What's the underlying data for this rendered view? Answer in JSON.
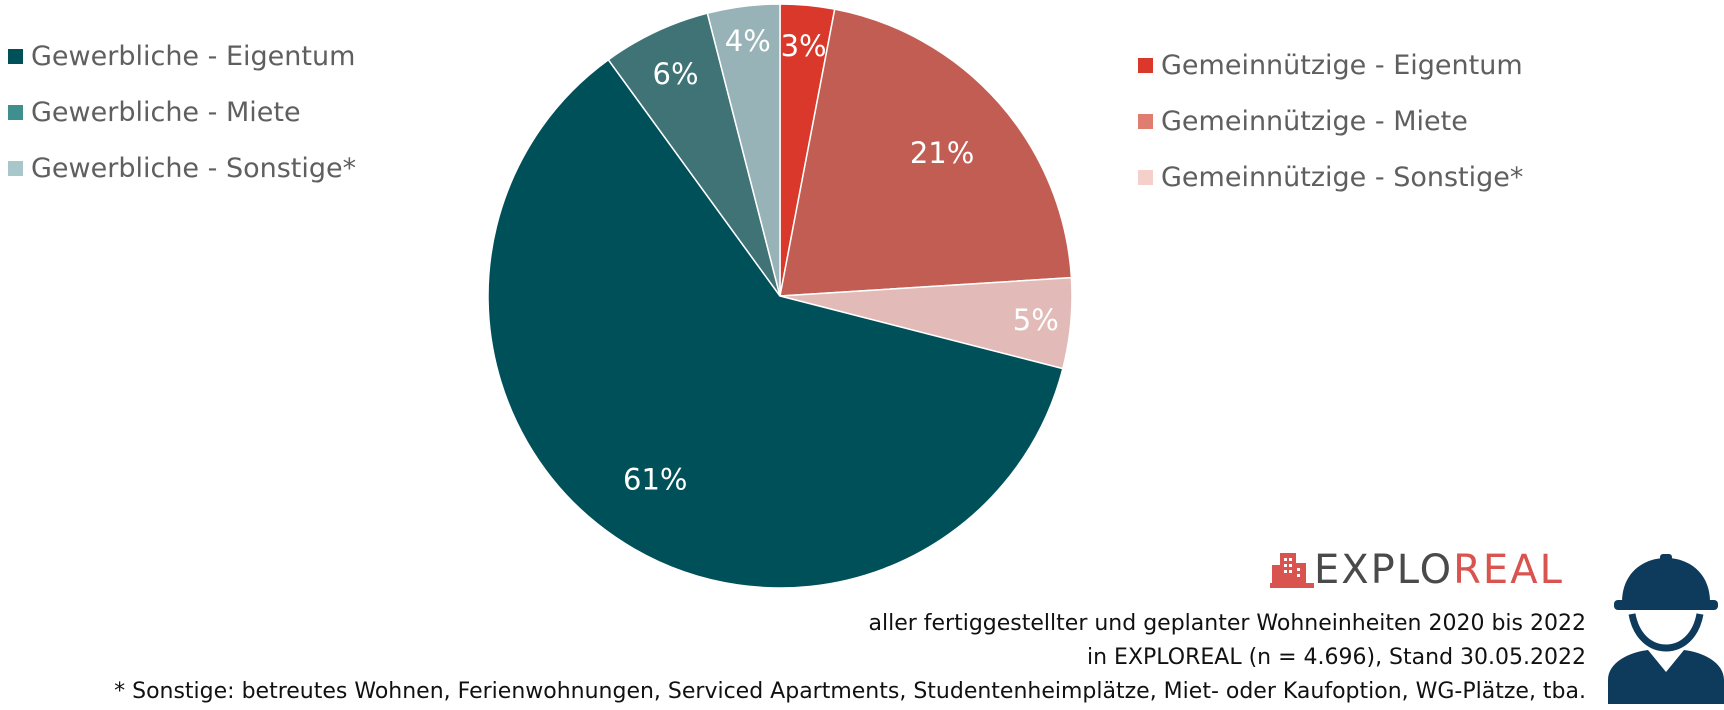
{
  "chart_data": {
    "type": "pie",
    "title": "",
    "slices": [
      {
        "label": "Gemeinnützige - Eigentum",
        "value": 3,
        "display": "3%",
        "color": "#d9382a"
      },
      {
        "label": "Gemeinnützige - Miete",
        "value": 21,
        "display": "21%",
        "color": "#c25d53"
      },
      {
        "label": "Gemeinnützige - Sonstige*",
        "value": 5,
        "display": "5%",
        "color": "#e2bbb8"
      },
      {
        "label": "Gewerbliche - Eigentum",
        "value": 61,
        "display": "61%",
        "color": "#00505a"
      },
      {
        "label": "Gewerbliche - Miete",
        "value": 6,
        "display": "6%",
        "color": "#3f7376"
      },
      {
        "label": "Gewerbliche - Sonstige*",
        "value": 4,
        "display": "4%",
        "color": "#98b3b8"
      }
    ],
    "legend_left": [
      {
        "label": "Gewerbliche - Eigentum",
        "color": "#00505a"
      },
      {
        "label": "Gewerbliche - Miete",
        "color": "#3f8f8e"
      },
      {
        "label": "Gewerbliche - Sonstige*",
        "color": "#a9c6ca"
      }
    ],
    "legend_right": [
      {
        "label": "Gemeinnützige - Eigentum",
        "color": "#d9382a"
      },
      {
        "label": "Gemeinnützige - Miete",
        "color": "#e07c70"
      },
      {
        "label": "Gemeinnützige - Sonstige*",
        "color": "#f5cfca"
      }
    ],
    "legend_placement": "left-and-right",
    "start_angle_deg": 0,
    "direction": "clockwise"
  },
  "brand": {
    "name_part1": "EXPLO",
    "name_part2": "REAL",
    "logo_color": "#d9534f",
    "icon": "building-logo-icon"
  },
  "notes": {
    "line1": "aller fertiggestellter und geplanter Wohneinheiten 2020 bis 2022",
    "line2": "in EXPLOREAL (n = 4.696), Stand 30.05.2022",
    "line3": "* Sonstige: betreutes Wohnen, Ferienwohnungen, Serviced Apartments, Studentenheimplätze, Miet- oder Kaufoption, WG-Plätze, tba."
  },
  "decor": {
    "worker_icon": "construction-worker-icon",
    "worker_color": "#0e3a5c"
  }
}
